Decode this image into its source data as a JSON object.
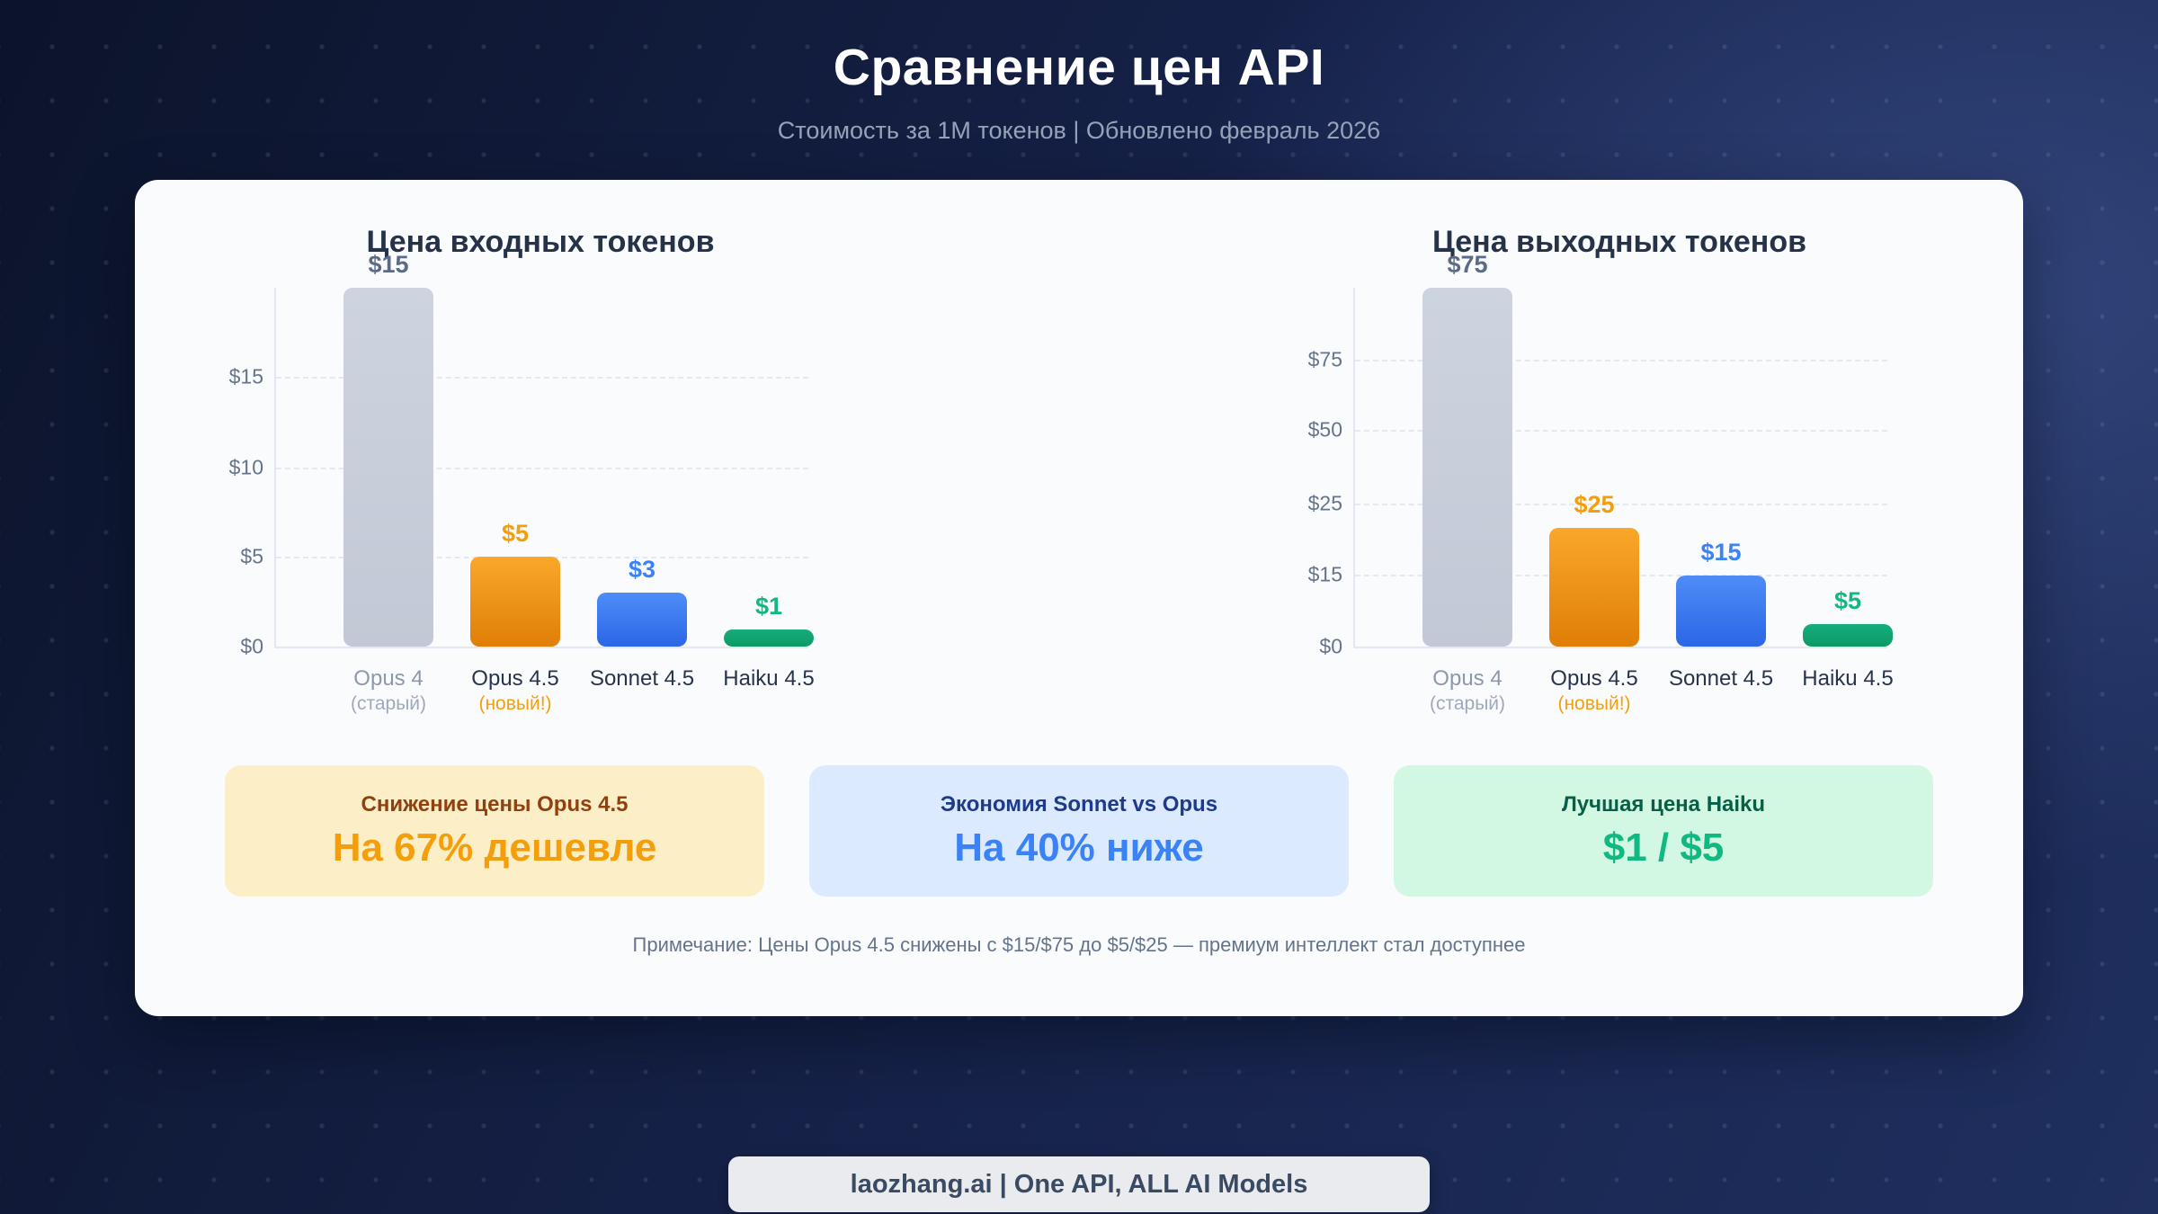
{
  "page": {
    "title": "Сравнение цен API",
    "subtitle": "Стоимость за 1M токенов | Обновлено февраль 2026",
    "note": "Примечание: Цены Opus 4.5 снижены с $15/$75 до $5/$25 — премиум интеллект стал доступнее",
    "footer": "laozhang.ai | One API, ALL AI Models"
  },
  "chart_data": [
    {
      "type": "bar",
      "title": "Цена входных токенов",
      "categories": [
        "Opus 4",
        "Opus 4.5",
        "Sonnet 4.5",
        "Haiku 4.5"
      ],
      "category_sublabels": [
        "(старый)",
        "(новый!)",
        "",
        ""
      ],
      "values": [
        15,
        5,
        3,
        1
      ],
      "value_labels": [
        "$15",
        "$5",
        "$3",
        "$1"
      ],
      "yticks": [
        "$15",
        "$10",
        "$5",
        "$0"
      ],
      "ytick_pcts": [
        24.8,
        50,
        75,
        100
      ],
      "bar_height_pcts": [
        100,
        25,
        15,
        4.8
      ],
      "bar_colors": [
        "gray",
        "orange",
        "blue",
        "green"
      ],
      "grid": "horizontal dashed",
      "legend": "none"
    },
    {
      "type": "bar",
      "title": "Цена выходных токенов",
      "categories": [
        "Opus 4",
        "Opus 4.5",
        "Sonnet 4.5",
        "Haiku 4.5"
      ],
      "category_sublabels": [
        "(старый)",
        "(новый!)",
        "",
        ""
      ],
      "values": [
        75,
        25,
        15,
        5
      ],
      "value_labels": [
        "$75",
        "$25",
        "$15",
        "$5"
      ],
      "yticks": [
        "$75",
        "$50",
        "$25",
        "$15",
        "$0"
      ],
      "ytick_pcts": [
        20,
        39.7,
        60.2,
        80,
        100
      ],
      "bar_height_pcts": [
        100,
        33,
        19.8,
        6.3
      ],
      "bar_colors": [
        "gray",
        "orange",
        "blue",
        "green"
      ],
      "grid": "horizontal dashed",
      "legend": "none"
    }
  ],
  "cards": [
    {
      "title": "Снижение цены Opus 4.5",
      "value": "На 67% дешевле",
      "theme": "yellow"
    },
    {
      "title": "Экономия Sonnet vs Opus",
      "value": "На 40% ниже",
      "theme": "blue"
    },
    {
      "title": "Лучшая цена Haiku",
      "value": "$1 / $5",
      "theme": "green"
    }
  ],
  "colors": {
    "background_dark": "#0C142B",
    "background_highlight": "#31447A",
    "card_background": "#FAFBFD",
    "chart_title": "#263248",
    "tick_label": "#64748B",
    "bar_gray": "#C6CDD9",
    "bar_orange": "#F59E0B",
    "bar_blue": "#3B82F6",
    "bar_green": "#10B981",
    "value_slate": "#5B6B86",
    "yellow_card_bg": "#FCEFC7",
    "yellow_card_title": "#92400E",
    "yellow_card_value": "#F59E0B",
    "blue_card_bg": "#DBEAFE",
    "blue_card_title": "#1E3A8A",
    "blue_card_value": "#3B82F6",
    "green_card_bg": "#D2F8E3",
    "green_card_title": "#065F46",
    "green_card_value": "#10B981",
    "footer_bg": "#E9EBEF",
    "footer_text": "#3B4A63"
  }
}
